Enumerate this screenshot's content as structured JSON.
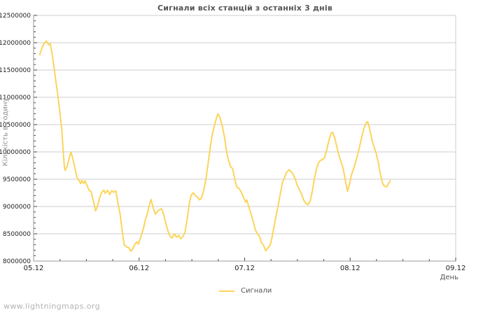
{
  "page": {
    "watermark": "www.lightningmaps.org"
  },
  "chart_data": {
    "type": "line",
    "title": "Сигнали всіх станцій з останніх 3 днів",
    "xlabel": "День",
    "ylabel": "Кількість в годину",
    "legend": [
      {
        "label": "Сигнали",
        "color": "#fcd45a",
        "position": "bottom-center"
      }
    ],
    "grid": "horizontal-major-only",
    "ylim": [
      8000000,
      12500000
    ],
    "y_major_step": 500000,
    "y_minor_step": 100000,
    "y_tick_labels": [
      "8000000",
      "8500000",
      "9000000",
      "9500000",
      "10000000",
      "10500000",
      "11000000",
      "11500000",
      "12000000",
      "12500000"
    ],
    "xlim_hours": [
      0,
      96
    ],
    "x_major_every_hours": 24,
    "x_minor_every_hours": 6,
    "x_major_labels": [
      "05.12",
      "06.12",
      "07.12",
      "08.12",
      "09.12"
    ],
    "colors": {
      "line": "#fcd45a",
      "grid": "#cccccc",
      "axis": "#999999",
      "tick": "#444444",
      "tick_label": "#222222",
      "title": "#555555",
      "axis_label": "#555555",
      "watermark": "#b3b3b3",
      "background": "#ffffff"
    },
    "series": [
      {
        "name": "Сигнали",
        "color": "#fcd45a",
        "points_format": [
          "hours_since_05.12_00:00",
          "signals_per_hour"
        ],
        "points": [
          [
            1.4,
            11780000
          ],
          [
            1.9,
            11900000
          ],
          [
            2.4,
            11990000
          ],
          [
            2.9,
            12030000
          ],
          [
            3.2,
            11990000
          ],
          [
            3.5,
            11960000
          ],
          [
            3.8,
            11980000
          ],
          [
            4.3,
            11750000
          ],
          [
            4.8,
            11450000
          ],
          [
            5.4,
            11100000
          ],
          [
            5.9,
            10780000
          ],
          [
            6.4,
            10420000
          ],
          [
            6.7,
            10050000
          ],
          [
            7.0,
            9720000
          ],
          [
            7.2,
            9660000
          ],
          [
            7.7,
            9750000
          ],
          [
            8.2,
            9920000
          ],
          [
            8.5,
            10000000
          ],
          [
            9.0,
            9850000
          ],
          [
            9.4,
            9700000
          ],
          [
            9.9,
            9520000
          ],
          [
            10.4,
            9470000
          ],
          [
            10.7,
            9420000
          ],
          [
            11.0,
            9480000
          ],
          [
            11.4,
            9420000
          ],
          [
            11.7,
            9470000
          ],
          [
            12.2,
            9380000
          ],
          [
            12.6,
            9300000
          ],
          [
            13.1,
            9270000
          ],
          [
            13.6,
            9100000
          ],
          [
            14.1,
            8920000
          ],
          [
            14.6,
            9020000
          ],
          [
            15.0,
            9160000
          ],
          [
            15.5,
            9260000
          ],
          [
            16.0,
            9300000
          ],
          [
            16.3,
            9240000
          ],
          [
            16.8,
            9300000
          ],
          [
            17.3,
            9220000
          ],
          [
            17.8,
            9290000
          ],
          [
            18.2,
            9260000
          ],
          [
            18.7,
            9290000
          ],
          [
            19.2,
            9050000
          ],
          [
            19.7,
            8850000
          ],
          [
            20.2,
            8520000
          ],
          [
            20.6,
            8300000
          ],
          [
            21.1,
            8260000
          ],
          [
            21.6,
            8250000
          ],
          [
            21.9,
            8210000
          ],
          [
            22.2,
            8180000
          ],
          [
            22.7,
            8250000
          ],
          [
            23.2,
            8330000
          ],
          [
            23.5,
            8350000
          ],
          [
            23.8,
            8310000
          ],
          [
            24.3,
            8420000
          ],
          [
            25.0,
            8600000
          ],
          [
            25.4,
            8750000
          ],
          [
            25.9,
            8880000
          ],
          [
            26.4,
            9050000
          ],
          [
            26.7,
            9130000
          ],
          [
            27.2,
            8980000
          ],
          [
            27.7,
            8860000
          ],
          [
            28.2,
            8910000
          ],
          [
            28.6,
            8940000
          ],
          [
            29.1,
            8960000
          ],
          [
            29.6,
            8850000
          ],
          [
            30.1,
            8680000
          ],
          [
            30.6,
            8540000
          ],
          [
            31.0,
            8460000
          ],
          [
            31.5,
            8420000
          ],
          [
            32.0,
            8500000
          ],
          [
            32.5,
            8440000
          ],
          [
            33.0,
            8470000
          ],
          [
            33.4,
            8410000
          ],
          [
            33.9,
            8440000
          ],
          [
            34.4,
            8520000
          ],
          [
            34.9,
            8750000
          ],
          [
            35.4,
            9050000
          ],
          [
            35.8,
            9200000
          ],
          [
            36.3,
            9250000
          ],
          [
            36.8,
            9200000
          ],
          [
            37.3,
            9170000
          ],
          [
            37.8,
            9120000
          ],
          [
            38.2,
            9160000
          ],
          [
            38.7,
            9300000
          ],
          [
            39.2,
            9500000
          ],
          [
            39.7,
            9800000
          ],
          [
            40.2,
            10100000
          ],
          [
            40.6,
            10300000
          ],
          [
            41.1,
            10480000
          ],
          [
            41.6,
            10620000
          ],
          [
            41.9,
            10700000
          ],
          [
            42.4,
            10630000
          ],
          [
            42.9,
            10480000
          ],
          [
            43.4,
            10280000
          ],
          [
            43.8,
            10050000
          ],
          [
            44.3,
            9850000
          ],
          [
            44.8,
            9730000
          ],
          [
            45.3,
            9690000
          ],
          [
            45.8,
            9480000
          ],
          [
            46.2,
            9360000
          ],
          [
            46.7,
            9330000
          ],
          [
            47.2,
            9270000
          ],
          [
            47.7,
            9180000
          ],
          [
            48.2,
            9080000
          ],
          [
            48.5,
            9120000
          ],
          [
            49.0,
            8980000
          ],
          [
            49.4,
            8880000
          ],
          [
            49.9,
            8740000
          ],
          [
            50.4,
            8580000
          ],
          [
            50.9,
            8500000
          ],
          [
            51.4,
            8450000
          ],
          [
            51.8,
            8340000
          ],
          [
            52.3,
            8290000
          ],
          [
            52.8,
            8190000
          ],
          [
            53.3,
            8240000
          ],
          [
            53.8,
            8290000
          ],
          [
            54.2,
            8420000
          ],
          [
            54.7,
            8640000
          ],
          [
            55.2,
            8850000
          ],
          [
            55.7,
            9050000
          ],
          [
            56.2,
            9270000
          ],
          [
            56.6,
            9440000
          ],
          [
            57.1,
            9540000
          ],
          [
            57.6,
            9630000
          ],
          [
            58.1,
            9670000
          ],
          [
            58.6,
            9640000
          ],
          [
            59.0,
            9590000
          ],
          [
            59.5,
            9510000
          ],
          [
            60.0,
            9380000
          ],
          [
            60.5,
            9300000
          ],
          [
            61.0,
            9220000
          ],
          [
            61.4,
            9120000
          ],
          [
            61.9,
            9060000
          ],
          [
            62.4,
            9030000
          ],
          [
            62.9,
            9100000
          ],
          [
            63.4,
            9280000
          ],
          [
            63.8,
            9480000
          ],
          [
            64.3,
            9680000
          ],
          [
            64.8,
            9800000
          ],
          [
            65.3,
            9850000
          ],
          [
            65.8,
            9860000
          ],
          [
            66.2,
            9900000
          ],
          [
            66.7,
            10050000
          ],
          [
            67.2,
            10220000
          ],
          [
            67.7,
            10340000
          ],
          [
            68.0,
            10360000
          ],
          [
            68.5,
            10250000
          ],
          [
            69.0,
            10080000
          ],
          [
            69.4,
            9950000
          ],
          [
            69.9,
            9820000
          ],
          [
            70.4,
            9700000
          ],
          [
            70.9,
            9480000
          ],
          [
            71.4,
            9280000
          ],
          [
            71.8,
            9400000
          ],
          [
            72.3,
            9580000
          ],
          [
            72.8,
            9700000
          ],
          [
            73.3,
            9830000
          ],
          [
            73.8,
            9980000
          ],
          [
            74.2,
            10120000
          ],
          [
            74.7,
            10300000
          ],
          [
            75.2,
            10450000
          ],
          [
            75.7,
            10540000
          ],
          [
            76.0,
            10550000
          ],
          [
            76.5,
            10400000
          ],
          [
            77.0,
            10200000
          ],
          [
            77.4,
            10100000
          ],
          [
            77.9,
            9980000
          ],
          [
            78.4,
            9800000
          ],
          [
            78.9,
            9580000
          ],
          [
            79.4,
            9420000
          ],
          [
            79.8,
            9370000
          ],
          [
            80.3,
            9360000
          ],
          [
            80.8,
            9430000
          ],
          [
            81.1,
            9470000
          ]
        ]
      }
    ]
  }
}
